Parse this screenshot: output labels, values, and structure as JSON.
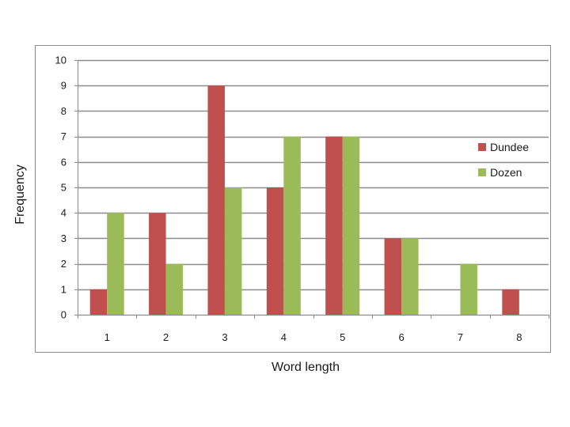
{
  "chart_data": {
    "type": "bar",
    "title": "",
    "xlabel": "Word length",
    "ylabel": "Frequency",
    "categories": [
      "1",
      "2",
      "3",
      "4",
      "5",
      "6",
      "7",
      "8"
    ],
    "series": [
      {
        "name": "Dundee",
        "color": "#c0504d",
        "values": [
          1,
          4,
          9,
          5,
          7,
          3,
          0,
          1
        ]
      },
      {
        "name": "Dozen",
        "color": "#9bbb59",
        "values": [
          4,
          2,
          5,
          7,
          7,
          3,
          2,
          0
        ]
      }
    ],
    "ylim": [
      0,
      10
    ],
    "yticks": [
      "0",
      "1",
      "2",
      "3",
      "4",
      "5",
      "6",
      "7",
      "8",
      "9",
      "10"
    ],
    "grid": true,
    "legend_position": "right"
  }
}
